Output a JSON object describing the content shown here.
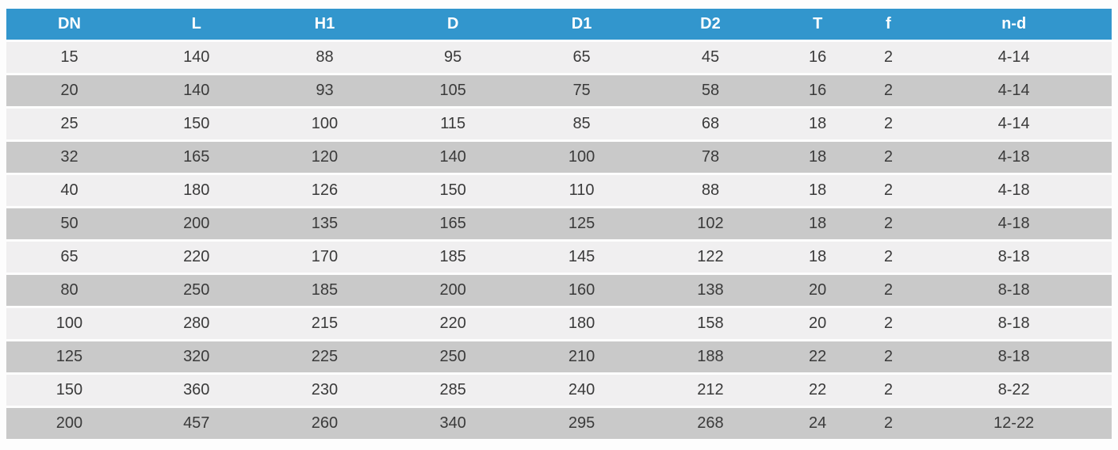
{
  "table": {
    "columns": [
      "DN",
      "L",
      "H1",
      "D",
      "D1",
      "D2",
      "T",
      "f",
      "n-d"
    ],
    "rows": [
      [
        "15",
        "140",
        "88",
        "95",
        "65",
        "45",
        "16",
        "2",
        "4-14"
      ],
      [
        "20",
        "140",
        "93",
        "105",
        "75",
        "58",
        "16",
        "2",
        "4-14"
      ],
      [
        "25",
        "150",
        "100",
        "115",
        "85",
        "68",
        "18",
        "2",
        "4-14"
      ],
      [
        "32",
        "165",
        "120",
        "140",
        "100",
        "78",
        "18",
        "2",
        "4-18"
      ],
      [
        "40",
        "180",
        "126",
        "150",
        "110",
        "88",
        "18",
        "2",
        "4-18"
      ],
      [
        "50",
        "200",
        "135",
        "165",
        "125",
        "102",
        "18",
        "2",
        "4-18"
      ],
      [
        "65",
        "220",
        "170",
        "185",
        "145",
        "122",
        "18",
        "2",
        "8-18"
      ],
      [
        "80",
        "250",
        "185",
        "200",
        "160",
        "138",
        "20",
        "2",
        "8-18"
      ],
      [
        "100",
        "280",
        "215",
        "220",
        "180",
        "158",
        "20",
        "2",
        "8-18"
      ],
      [
        "125",
        "320",
        "225",
        "250",
        "210",
        "188",
        "22",
        "2",
        "8-18"
      ],
      [
        "150",
        "360",
        "230",
        "285",
        "240",
        "212",
        "22",
        "2",
        "8-22"
      ],
      [
        "200",
        "457",
        "260",
        "340",
        "295",
        "268",
        "24",
        "2",
        "12-22"
      ]
    ],
    "colors": {
      "header_bg": "#3296cd",
      "header_text": "#ffffff",
      "row_light": "#f0eff0",
      "row_dark": "#c9c9c9",
      "cell_text": "#3a3a3a"
    }
  }
}
